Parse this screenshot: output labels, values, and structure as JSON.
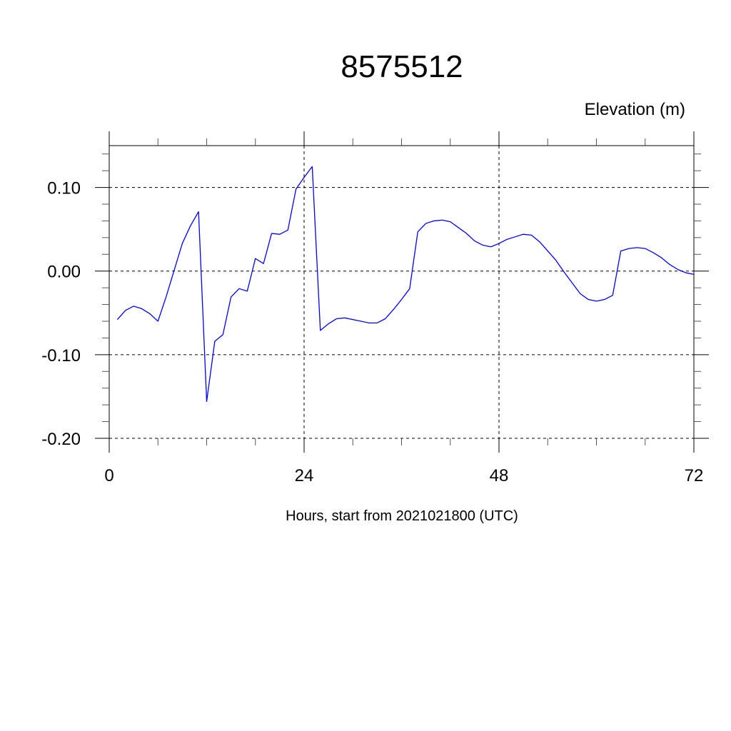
{
  "chart_data": {
    "type": "line",
    "title": "8575512",
    "ylabel": "Elevation (m)",
    "xlabel": "Hours, start from 2021021800 (UTC)",
    "xlim": [
      0,
      72
    ],
    "ylim": [
      -0.2,
      0.15
    ],
    "x_ticks": [
      0,
      24,
      48,
      72
    ],
    "x_tick_labels": [
      "0",
      "24",
      "48",
      "72"
    ],
    "y_ticks": [
      0.1,
      0.0,
      -0.1,
      -0.2
    ],
    "y_tick_labels": [
      "0.10",
      "0.00",
      "-0.10",
      "-0.20"
    ],
    "x_minor_step": 6,
    "y_minor_step": 0.02,
    "grid": "dashed at major ticks",
    "line_color": "#0000ff",
    "series": [
      {
        "x": [
          1,
          2,
          3,
          4,
          5,
          6,
          7,
          8,
          9,
          10,
          11,
          12,
          13,
          14,
          15,
          16,
          17,
          18,
          19,
          20,
          21,
          22,
          23,
          24,
          25,
          26,
          27,
          28,
          29,
          30,
          31,
          32,
          33,
          34,
          35,
          36,
          37,
          38,
          39,
          40,
          41,
          42,
          43,
          44,
          45,
          46,
          47,
          48,
          49,
          50,
          51,
          52,
          53,
          54,
          55,
          56,
          57,
          58,
          59,
          60,
          61,
          62,
          63,
          64,
          65,
          66,
          67,
          68,
          69,
          70,
          71,
          72
        ],
        "values": [
          -0.058,
          -0.047,
          -0.042,
          -0.045,
          -0.051,
          -0.06,
          -0.031,
          0.001,
          0.033,
          0.054,
          0.071,
          -0.156,
          -0.084,
          -0.076,
          -0.031,
          -0.021,
          -0.024,
          0.015,
          0.009,
          0.045,
          0.044,
          0.049,
          0.098,
          0.112,
          0.125,
          -0.071,
          -0.063,
          -0.057,
          -0.056,
          -0.058,
          -0.06,
          -0.062,
          -0.062,
          -0.057,
          -0.046,
          -0.034,
          -0.021,
          0.047,
          0.057,
          0.06,
          0.061,
          0.059,
          0.052,
          0.045,
          0.036,
          0.031,
          0.029,
          0.033,
          0.038,
          0.041,
          0.044,
          0.043,
          0.035,
          0.024,
          0.013,
          -0.001,
          -0.014,
          -0.027,
          -0.034,
          -0.036,
          -0.034,
          -0.029,
          0.024,
          0.027,
          0.028,
          0.027,
          0.022,
          0.016,
          0.008,
          0.002,
          -0.002,
          -0.004
        ]
      }
    ]
  }
}
